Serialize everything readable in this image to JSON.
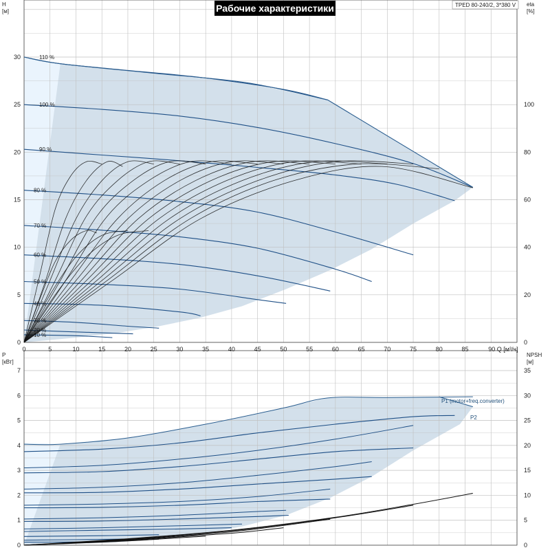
{
  "title": "Рабочие характеристики",
  "model": "TPED 80-240/2, 3*380 V",
  "colors": {
    "area_fill": "#d3e0eb",
    "area_light": "#eaf4fd",
    "area_edge": "#2a5d8f",
    "curve_blue": "#1e4f86",
    "curve_black": "#111111",
    "grid": "#bfbfbf",
    "title_bg": "#000000"
  },
  "chart_data": [
    {
      "type": "line",
      "name": "head",
      "ylabel": "H",
      "yunit": "[м]",
      "y2label": "eta",
      "y2unit": "[%]",
      "xlabel": "Q",
      "xunit": "[м³/ч]",
      "xlim": [
        0,
        95
      ],
      "ylim": [
        0,
        36
      ],
      "y2lim": [
        0,
        144
      ],
      "x_ticks": [
        0,
        5,
        10,
        15,
        20,
        25,
        30,
        35,
        40,
        45,
        50,
        55,
        60,
        65,
        70,
        75,
        80,
        85,
        90
      ],
      "x_tick_labels": [
        "0",
        "5",
        "10",
        "15",
        "20",
        "25",
        "30",
        "35",
        "40",
        "45",
        "50",
        "55",
        "60",
        "65",
        "70",
        "75",
        "80",
        "85",
        "90 Q [м³/ч]"
      ],
      "y_ticks": [
        0,
        5,
        10,
        15,
        20,
        25,
        30
      ],
      "y_tick_labels": [
        "0",
        "5",
        "10",
        "15",
        "20",
        "25",
        "30"
      ],
      "y2_ticks": [
        0,
        20,
        40,
        60,
        80,
        100
      ],
      "y2_tick_labels": [
        "0",
        "20",
        "40",
        "60",
        "80",
        "100"
      ],
      "grid": true,
      "operating_area": [
        [
          0,
          30
        ],
        [
          7,
          29.3
        ],
        [
          25,
          28.3
        ],
        [
          43,
          27.3
        ],
        [
          58.5,
          25.5
        ],
        [
          86.5,
          16.3
        ],
        [
          83,
          14.9
        ],
        [
          75,
          12.5
        ],
        [
          67,
          9.8
        ],
        [
          59,
          7.6
        ],
        [
          50.5,
          5.6
        ],
        [
          42,
          3.8
        ],
        [
          34,
          2.6
        ],
        [
          26,
          1.7
        ],
        [
          18,
          1.0
        ],
        [
          10,
          0.5
        ],
        [
          0,
          0
        ]
      ],
      "head_series": [
        {
          "label": "110 %",
          "x": [
            0,
            7,
            20,
            35,
            50,
            58.5
          ],
          "y": [
            30,
            29.3,
            28.6,
            27.8,
            26.6,
            25.5
          ]
        },
        {
          "label": "100 %",
          "x": [
            0,
            15,
            30,
            45,
            60,
            75,
            86.5
          ],
          "y": [
            25,
            24.5,
            23.8,
            22.6,
            20.9,
            18.8,
            16.3
          ]
        },
        {
          "label": "90 %",
          "x": [
            0,
            15,
            30,
            45,
            60,
            72,
            83
          ],
          "y": [
            20.3,
            19.7,
            19.1,
            18.4,
            17.6,
            16.6,
            14.9
          ]
        },
        {
          "label": "80 %",
          "x": [
            0,
            15,
            30,
            45,
            60,
            75
          ],
          "y": [
            16,
            15.5,
            14.8,
            13.7,
            11.6,
            9.2
          ]
        },
        {
          "label": "70 %",
          "x": [
            0,
            15,
            30,
            45,
            60,
            67
          ],
          "y": [
            12.3,
            11.8,
            11.1,
            9.9,
            7.7,
            6.4
          ]
        },
        {
          "label": "60 %",
          "x": [
            0,
            15,
            30,
            45,
            59
          ],
          "y": [
            9.2,
            8.8,
            8.2,
            7.0,
            5.4
          ]
        },
        {
          "label": "50 %",
          "x": [
            0,
            15,
            30,
            45,
            50.5
          ],
          "y": [
            6.4,
            6.1,
            5.6,
            4.5,
            4.1
          ]
        },
        {
          "label": "40 %",
          "x": [
            0,
            15,
            30,
            34
          ],
          "y": [
            4.1,
            3.9,
            3.2,
            2.8
          ]
        },
        {
          "label": "30 %",
          "x": [
            0,
            10,
            20,
            26
          ],
          "y": [
            2.3,
            2.1,
            1.7,
            1.5
          ]
        },
        {
          "label": "20 %",
          "x": [
            0,
            10,
            21
          ],
          "y": [
            1.3,
            1.1,
            0.9
          ]
        },
        {
          "label": "10 %",
          "x": [
            0,
            10,
            17
          ],
          "y": [
            0.8,
            0.7,
            0.5
          ]
        }
      ],
      "eta_series": [
        {
          "x": [
            0,
            3,
            6,
            9,
            12,
            15
          ],
          "y": [
            0,
            28,
            56,
            70,
            76,
            75
          ]
        },
        {
          "x": [
            0,
            4,
            8,
            12,
            16,
            19
          ],
          "y": [
            0,
            25,
            52,
            68,
            76,
            74
          ]
        },
        {
          "x": [
            0,
            5,
            10,
            15,
            20,
            25
          ],
          "y": [
            0,
            26,
            52,
            68,
            76,
            75
          ]
        },
        {
          "x": [
            0,
            6,
            12,
            18,
            24,
            30
          ],
          "y": [
            0,
            26,
            53,
            68,
            76,
            75
          ]
        },
        {
          "x": [
            0,
            7,
            14,
            21,
            28,
            35
          ],
          "y": [
            0,
            26,
            53,
            68,
            76,
            75
          ]
        },
        {
          "x": [
            0,
            8,
            16,
            24,
            32,
            40
          ],
          "y": [
            0,
            26,
            53,
            68,
            76,
            75
          ]
        },
        {
          "x": [
            0,
            9,
            18,
            27,
            36,
            45
          ],
          "y": [
            0,
            26,
            52,
            68,
            76,
            75
          ]
        },
        {
          "x": [
            0,
            10,
            20,
            30,
            40,
            50
          ],
          "y": [
            0,
            26,
            52,
            68,
            76,
            75
          ]
        },
        {
          "x": [
            0,
            11,
            22,
            33,
            44,
            55
          ],
          "y": [
            0,
            26,
            52,
            68,
            76,
            75
          ]
        },
        {
          "x": [
            0,
            12,
            24,
            36,
            48,
            60
          ],
          "y": [
            0,
            26,
            52,
            68,
            76,
            75
          ]
        },
        {
          "x": [
            0,
            13,
            26,
            39,
            52,
            65
          ],
          "y": [
            0,
            26,
            52,
            68,
            76,
            75
          ]
        },
        {
          "x": [
            0,
            14,
            28,
            42,
            56,
            70
          ],
          "y": [
            0,
            26,
            52,
            68,
            76,
            75
          ]
        },
        {
          "x": [
            0,
            15,
            30,
            45,
            60,
            75
          ],
          "y": [
            0,
            26,
            52,
            68,
            76,
            75
          ]
        },
        {
          "x": [
            0,
            16,
            32,
            48,
            64,
            80
          ],
          "y": [
            0,
            26,
            52,
            68,
            75,
            73
          ]
        },
        {
          "x": [
            0,
            17,
            34,
            52,
            69,
            86.5
          ],
          "y": [
            0,
            26,
            52,
            68,
            74,
            65
          ]
        },
        {
          "x": [
            0,
            3,
            6,
            9,
            12,
            14
          ],
          "y": [
            0,
            18,
            34,
            43,
            47,
            46
          ]
        },
        {
          "x": [
            0,
            5,
            10,
            15,
            20
          ],
          "y": [
            0,
            20,
            36,
            45,
            47
          ]
        },
        {
          "x": [
            0,
            6,
            12,
            18,
            24
          ],
          "y": [
            0,
            20,
            36,
            45,
            47
          ]
        }
      ]
    },
    {
      "type": "line",
      "name": "power",
      "ylabel": "P",
      "yunit": "[кВт]",
      "y2label": "NPSH",
      "y2unit": "[м]",
      "xlim": [
        0,
        95
      ],
      "ylim": [
        0,
        7.8
      ],
      "y2lim": [
        0,
        39
      ],
      "y_ticks": [
        0,
        1,
        2,
        3,
        4,
        5,
        6,
        7
      ],
      "y_tick_labels": [
        "0",
        "1",
        "2",
        "3",
        "4",
        "5",
        "6",
        "7"
      ],
      "y2_ticks": [
        0,
        5,
        10,
        15,
        20,
        25,
        30,
        35
      ],
      "y2_tick_labels": [
        "0",
        "5",
        "10",
        "15",
        "20",
        "25",
        "30",
        "35"
      ],
      "grid": true,
      "labels": {
        "p1": "P1 (motor+freq.converter)",
        "p2": "P2"
      },
      "operating_area": [
        [
          0,
          4.1
        ],
        [
          7,
          4.05
        ],
        [
          20,
          4.3
        ],
        [
          35,
          4.85
        ],
        [
          50,
          5.5
        ],
        [
          58.5,
          5.9
        ],
        [
          80,
          5.95
        ],
        [
          86.5,
          5.55
        ],
        [
          84,
          4.85
        ],
        [
          75,
          3.8
        ],
        [
          67,
          2.75
        ],
        [
          59,
          1.9
        ],
        [
          50.5,
          1.2
        ],
        [
          42,
          0.75
        ],
        [
          34,
          0.45
        ],
        [
          26,
          0.25
        ],
        [
          18,
          0.12
        ],
        [
          10,
          0.06
        ],
        [
          0,
          0
        ]
      ],
      "p1_series": [
        {
          "x": [
            0,
            7,
            20,
            35,
            50,
            58.5,
            70,
            86.5
          ],
          "y": [
            4.05,
            4.05,
            4.3,
            4.85,
            5.5,
            5.9,
            5.92,
            5.95
          ]
        },
        {
          "x": [
            0,
            15,
            30,
            45,
            60,
            75
          ],
          "y": [
            3.1,
            3.2,
            3.45,
            3.8,
            4.25,
            4.8
          ]
        },
        {
          "x": [
            0,
            15,
            30,
            45,
            60,
            67
          ],
          "y": [
            2.25,
            2.32,
            2.5,
            2.8,
            3.15,
            3.35
          ]
        },
        {
          "x": [
            0,
            15,
            30,
            45,
            59
          ],
          "y": [
            1.6,
            1.65,
            1.75,
            1.95,
            2.25
          ]
        },
        {
          "x": [
            0,
            15,
            30,
            45,
            50.5
          ],
          "y": [
            1.05,
            1.1,
            1.2,
            1.35,
            1.4
          ]
        },
        {
          "x": [
            0,
            15,
            30,
            42
          ],
          "y": [
            0.65,
            0.7,
            0.78,
            0.85
          ]
        }
      ],
      "p2_series": [
        {
          "x": [
            0,
            15,
            30,
            45,
            60,
            75,
            83
          ],
          "y": [
            3.75,
            3.85,
            4.1,
            4.5,
            4.85,
            5.15,
            5.2
          ]
        },
        {
          "x": [
            0,
            15,
            30,
            45,
            60,
            75
          ],
          "y": [
            2.9,
            2.95,
            3.15,
            3.45,
            3.75,
            3.9
          ]
        },
        {
          "x": [
            0,
            15,
            30,
            45,
            60,
            67
          ],
          "y": [
            2.1,
            2.12,
            2.25,
            2.45,
            2.65,
            2.75
          ]
        },
        {
          "x": [
            0,
            15,
            30,
            45,
            59
          ],
          "y": [
            1.5,
            1.52,
            1.6,
            1.75,
            1.85
          ]
        },
        {
          "x": [
            0,
            15,
            30,
            45,
            51
          ],
          "y": [
            0.95,
            0.97,
            1.05,
            1.15,
            1.2
          ]
        },
        {
          "x": [
            0,
            15,
            30,
            40
          ],
          "y": [
            0.55,
            0.6,
            0.65,
            0.7
          ]
        },
        {
          "x": [
            0,
            15,
            26
          ],
          "y": [
            0.35,
            0.38,
            0.42
          ]
        },
        {
          "x": [
            0,
            10,
            21
          ],
          "y": [
            0.2,
            0.22,
            0.25
          ]
        },
        {
          "x": [
            0,
            10,
            17
          ],
          "y": [
            0.12,
            0.13,
            0.15
          ]
        }
      ],
      "npsh_series": [
        {
          "x": [
            0,
            20,
            40,
            60,
            75,
            86.5
          ],
          "y": [
            0,
            1.3,
            3.0,
            5.6,
            8.2,
            10.4
          ]
        },
        {
          "x": [
            0,
            20,
            40,
            60,
            75
          ],
          "y": [
            0,
            1.2,
            2.9,
            5.5,
            8.0
          ]
        },
        {
          "x": [
            0,
            20,
            40,
            59
          ],
          "y": [
            0,
            1.1,
            2.7,
            5.2
          ]
        },
        {
          "x": [
            0,
            20,
            40,
            50
          ],
          "y": [
            0,
            1.0,
            2.4,
            3.5
          ]
        },
        {
          "x": [
            0,
            20,
            35
          ],
          "y": [
            0,
            0.9,
            1.8
          ]
        },
        {
          "x": [
            0,
            15,
            26
          ],
          "y": [
            0,
            0.6,
            1.2
          ]
        }
      ]
    }
  ]
}
